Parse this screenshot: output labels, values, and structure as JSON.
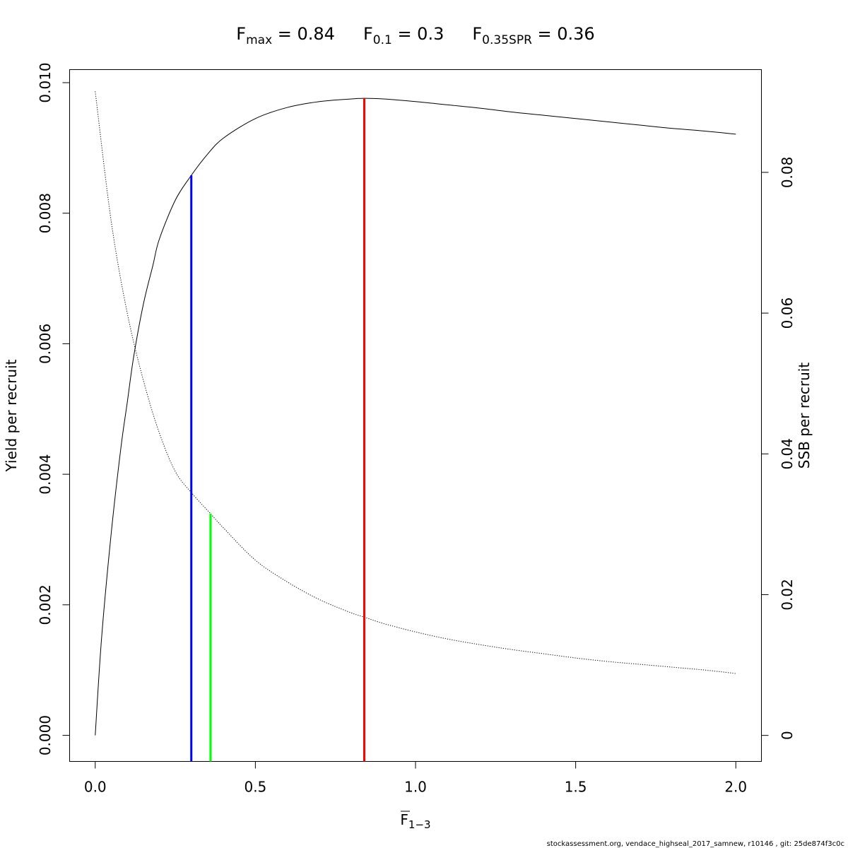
{
  "chart_data": {
    "type": "line",
    "title": {
      "parts": [
        {
          "main": "F",
          "sub": "max",
          "rest": " = 0.84"
        },
        {
          "main": "F",
          "sub": "0.1",
          "rest": " = 0.3"
        },
        {
          "main": "F",
          "sub": "0.35SPR",
          "rest": " = 0.36"
        }
      ]
    },
    "xlabel": {
      "main": "F",
      "sub": "1−3"
    },
    "ylabel_left": "Yield per recruit",
    "ylabel_right": "SSB per recruit",
    "xlim": [
      -0.08,
      2.08
    ],
    "ylim_left": [
      -0.0004,
      0.0102
    ],
    "ylim_right": [
      -0.0037,
      0.0946
    ],
    "x_ticks": [
      0,
      0.5,
      1,
      1.5,
      2
    ],
    "x_tick_labels": [
      "0.0",
      "0.5",
      "1.0",
      "1.5",
      "2.0"
    ],
    "y_left_ticks": [
      0,
      0.002,
      0.004,
      0.006,
      0.008,
      0.01
    ],
    "y_left_tick_labels": [
      "0.000",
      "0.002",
      "0.004",
      "0.006",
      "0.008",
      "0.010"
    ],
    "y_right_ticks": [
      0,
      0.02,
      0.04,
      0.06,
      0.08
    ],
    "y_right_tick_labels": [
      "0",
      "0.02",
      "0.04",
      "0.06",
      "0.08"
    ],
    "grid": false,
    "series": [
      {
        "axis": "left",
        "style": "solid",
        "x": [
          0,
          0.02,
          0.05,
          0.08,
          0.1,
          0.12,
          0.15,
          0.18,
          0.2,
          0.25,
          0.3,
          0.35,
          0.4,
          0.5,
          0.6,
          0.7,
          0.8,
          0.84,
          0.9,
          1.0,
          1.1,
          1.2,
          1.3,
          1.4,
          1.5,
          1.6,
          1.7,
          1.8,
          1.9,
          2.0
        ],
        "y": [
          0,
          0.0015,
          0.0031,
          0.0044,
          0.0051,
          0.0058,
          0.0066,
          0.0072,
          0.0076,
          0.0082,
          0.00858,
          0.0089,
          0.00915,
          0.00945,
          0.00962,
          0.00971,
          0.00975,
          0.00976,
          0.00975,
          0.00971,
          0.00966,
          0.00961,
          0.00955,
          0.0095,
          0.00945,
          0.0094,
          0.00935,
          0.0093,
          0.00926,
          0.00921
        ]
      },
      {
        "axis": "right",
        "style": "dotted",
        "x": [
          0,
          0.05,
          0.1,
          0.15,
          0.2,
          0.25,
          0.3,
          0.36,
          0.4,
          0.5,
          0.6,
          0.7,
          0.8,
          0.84,
          0.9,
          1.0,
          1.1,
          1.2,
          1.3,
          1.4,
          1.5,
          1.6,
          1.7,
          1.8,
          1.9,
          2.0
        ],
        "y": [
          0.0915,
          0.073,
          0.06,
          0.0505,
          0.043,
          0.0375,
          0.0345,
          0.0315,
          0.0295,
          0.0249,
          0.0218,
          0.0193,
          0.0174,
          0.0168,
          0.0159,
          0.0147,
          0.0137,
          0.0129,
          0.0122,
          0.0116,
          0.011,
          0.0105,
          0.0101,
          0.0097,
          0.0093,
          0.0088
        ]
      }
    ],
    "reference_lines": [
      {
        "name": "F0.1",
        "x": 0.3,
        "axis": "left",
        "y": 0.00858,
        "color": "#0000ff"
      },
      {
        "name": "F0.35SPR",
        "x": 0.36,
        "axis": "right",
        "y": 0.0315,
        "color": "#00ff00"
      },
      {
        "name": "Fmax",
        "x": 0.84,
        "axis": "left",
        "y": 0.00976,
        "color": "#ff0000"
      }
    ]
  },
  "footer": "stockassessment.org, vendace_highseal_2017_samnew, r10146 , git: 25de874f3c0c"
}
